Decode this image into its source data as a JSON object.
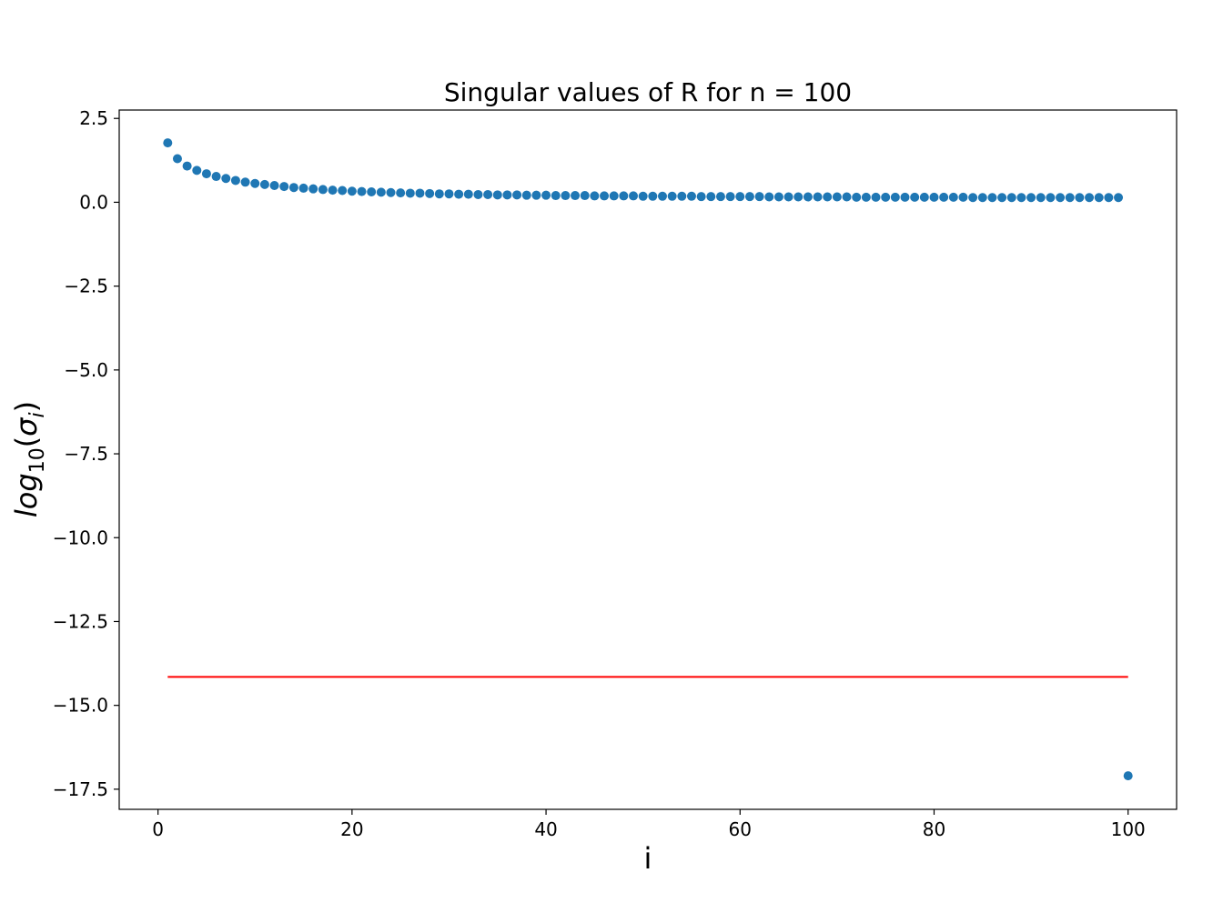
{
  "chart_data": {
    "type": "scatter",
    "title": "Singular values of R for n = 100",
    "xlabel": "i",
    "ylabel": {
      "base": "log",
      "subscript": "10",
      "open": "(",
      "symbol": "σ",
      "symbol_subscript": "i",
      "close": ")"
    },
    "xlim": [
      -4,
      105
    ],
    "ylim": [
      -18.1,
      2.75
    ],
    "x_ticks": [
      0,
      20,
      40,
      60,
      80,
      100
    ],
    "x_tick_labels": [
      "0",
      "20",
      "40",
      "60",
      "80",
      "100"
    ],
    "y_ticks": [
      2.5,
      0.0,
      -2.5,
      -5.0,
      -7.5,
      -10.0,
      -12.5,
      -15.0,
      -17.5
    ],
    "y_tick_labels": [
      "2.5",
      "0.0",
      "−2.5",
      "−5.0",
      "−7.5",
      "−10.0",
      "−12.5",
      "−15.0",
      "−17.5"
    ],
    "grid": false,
    "series": [
      {
        "kind": "points",
        "color": "#1f77b4",
        "x": [
          1,
          2,
          3,
          4,
          5,
          6,
          7,
          8,
          9,
          10,
          11,
          12,
          13,
          14,
          15,
          16,
          17,
          18,
          19,
          20,
          21,
          22,
          23,
          24,
          25,
          26,
          27,
          28,
          29,
          30,
          31,
          32,
          33,
          34,
          35,
          36,
          37,
          38,
          39,
          40,
          41,
          42,
          43,
          44,
          45,
          46,
          47,
          48,
          49,
          50,
          51,
          52,
          53,
          54,
          55,
          56,
          57,
          58,
          59,
          60,
          61,
          62,
          63,
          64,
          65,
          66,
          67,
          68,
          69,
          70,
          71,
          72,
          73,
          74,
          75,
          76,
          77,
          78,
          79,
          80,
          81,
          82,
          83,
          84,
          85,
          86,
          87,
          88,
          89,
          90,
          91,
          92,
          93,
          94,
          95,
          96,
          97,
          98,
          99,
          100
        ],
        "y": [
          1.77,
          1.3,
          1.08,
          0.95,
          0.85,
          0.77,
          0.71,
          0.65,
          0.6,
          0.56,
          0.53,
          0.5,
          0.47,
          0.44,
          0.42,
          0.4,
          0.38,
          0.36,
          0.35,
          0.33,
          0.32,
          0.31,
          0.3,
          0.29,
          0.28,
          0.27,
          0.27,
          0.26,
          0.25,
          0.25,
          0.24,
          0.24,
          0.23,
          0.23,
          0.22,
          0.22,
          0.22,
          0.21,
          0.21,
          0.21,
          0.2,
          0.2,
          0.2,
          0.2,
          0.19,
          0.19,
          0.19,
          0.19,
          0.19,
          0.18,
          0.18,
          0.18,
          0.18,
          0.18,
          0.18,
          0.17,
          0.17,
          0.17,
          0.17,
          0.17,
          0.17,
          0.17,
          0.16,
          0.16,
          0.16,
          0.16,
          0.16,
          0.16,
          0.16,
          0.16,
          0.16,
          0.15,
          0.15,
          0.15,
          0.15,
          0.15,
          0.15,
          0.15,
          0.15,
          0.15,
          0.15,
          0.15,
          0.15,
          0.14,
          0.14,
          0.14,
          0.14,
          0.14,
          0.14,
          0.14,
          0.14,
          0.14,
          0.14,
          0.14,
          0.14,
          0.14,
          0.14,
          0.14,
          0.14,
          -17.1
        ]
      },
      {
        "kind": "line",
        "color": "#ff0000",
        "x": [
          1,
          100
        ],
        "y": [
          -14.15,
          -14.15
        ]
      }
    ]
  }
}
